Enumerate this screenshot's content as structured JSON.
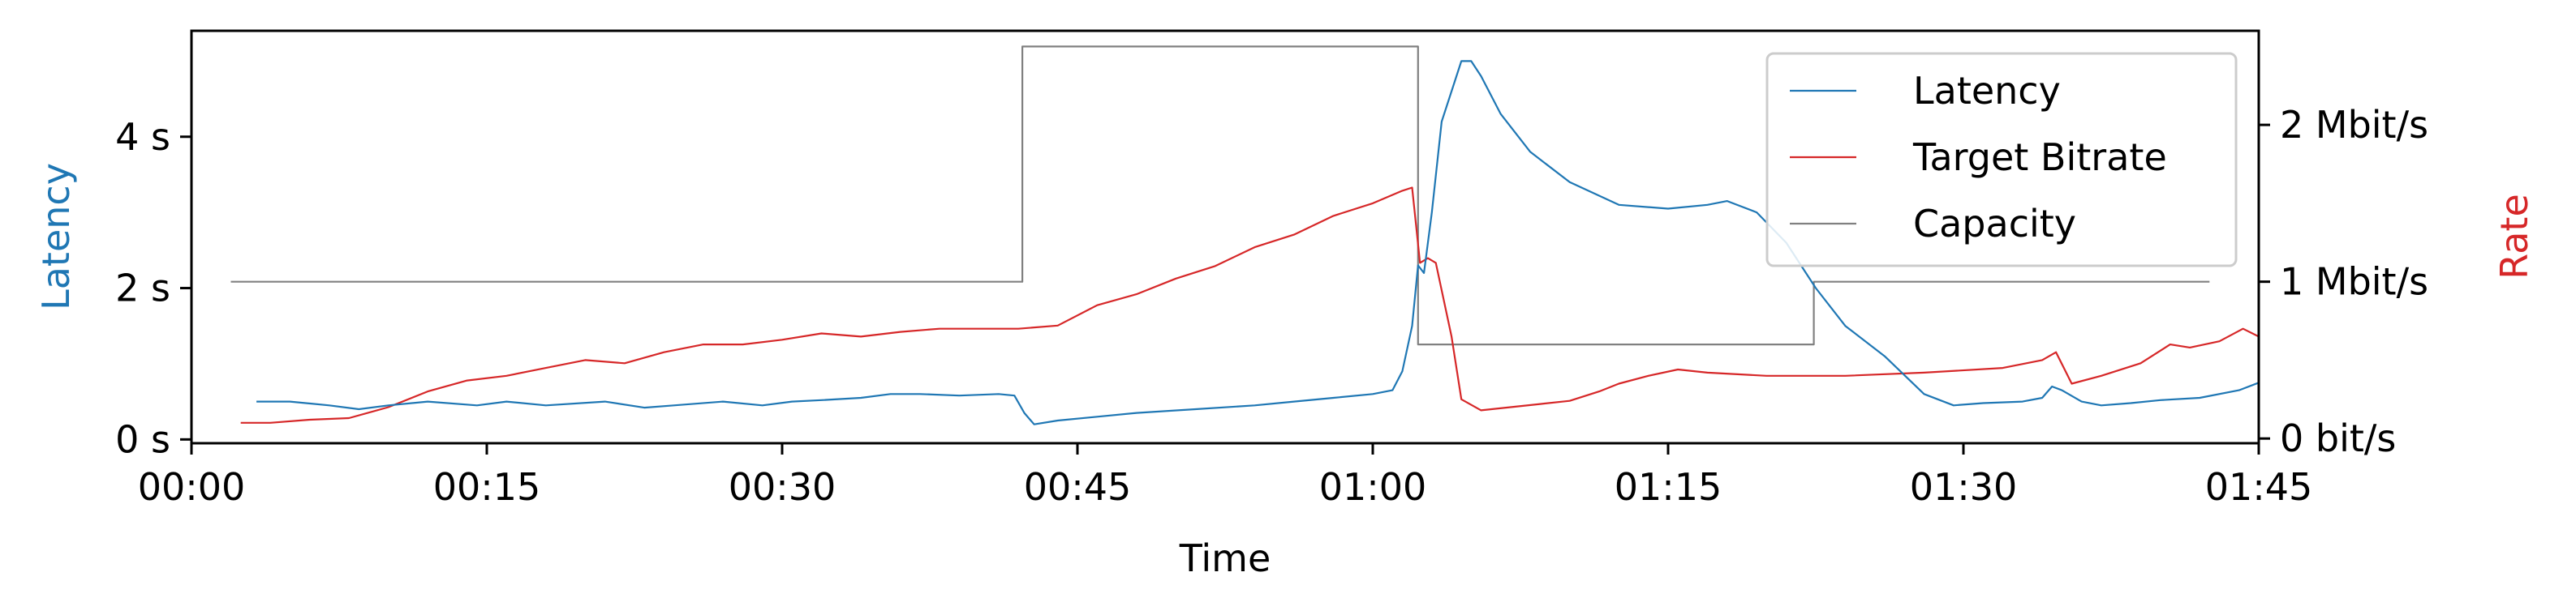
{
  "chart_data": {
    "type": "line",
    "xlabel": "Time",
    "ylabel_left": "Latency",
    "ylabel_right": "Rate",
    "x_unit": "seconds",
    "xlim": [
      0,
      105
    ],
    "ylim_left": [
      -0.05,
      5.4
    ],
    "ylim_right": [
      -0.03,
      2.6
    ],
    "x_ticks": [
      {
        "value": 0,
        "label": "00:00"
      },
      {
        "value": 15,
        "label": "00:15"
      },
      {
        "value": 30,
        "label": "00:30"
      },
      {
        "value": 45,
        "label": "00:45"
      },
      {
        "value": 60,
        "label": "01:00"
      },
      {
        "value": 75,
        "label": "01:15"
      },
      {
        "value": 90,
        "label": "01:30"
      },
      {
        "value": 105,
        "label": "01:45"
      }
    ],
    "y_ticks_left": [
      {
        "value": 0,
        "label": "0 s"
      },
      {
        "value": 2,
        "label": "2 s"
      },
      {
        "value": 4,
        "label": "4 s"
      }
    ],
    "y_ticks_right": [
      {
        "value": 0,
        "label": "0 bit/s"
      },
      {
        "value": 1,
        "label": "1 Mbit/s"
      },
      {
        "value": 2,
        "label": "2 Mbit/s"
      }
    ],
    "legend_position": "top-right",
    "grid": false,
    "series": [
      {
        "name": "Latency",
        "axis": "left",
        "color": "#1f77b4",
        "points": [
          [
            3.3,
            0.5
          ],
          [
            5,
            0.5
          ],
          [
            7,
            0.45
          ],
          [
            8.5,
            0.4
          ],
          [
            10,
            0.45
          ],
          [
            12,
            0.5
          ],
          [
            14.5,
            0.45
          ],
          [
            16,
            0.5
          ],
          [
            18,
            0.45
          ],
          [
            21,
            0.5
          ],
          [
            23,
            0.42
          ],
          [
            24.5,
            0.45
          ],
          [
            27,
            0.5
          ],
          [
            29,
            0.45
          ],
          [
            30.5,
            0.5
          ],
          [
            32,
            0.52
          ],
          [
            34,
            0.55
          ],
          [
            35.5,
            0.6
          ],
          [
            37,
            0.6
          ],
          [
            39,
            0.58
          ],
          [
            41,
            0.6
          ],
          [
            41.8,
            0.58
          ],
          [
            42.3,
            0.35
          ],
          [
            42.8,
            0.2
          ],
          [
            44,
            0.25
          ],
          [
            46,
            0.3
          ],
          [
            48,
            0.35
          ],
          [
            51,
            0.4
          ],
          [
            54,
            0.45
          ],
          [
            56,
            0.5
          ],
          [
            58,
            0.55
          ],
          [
            60,
            0.6
          ],
          [
            61,
            0.65
          ],
          [
            61.5,
            0.9
          ],
          [
            62,
            1.5
          ],
          [
            62.3,
            2.3
          ],
          [
            62.6,
            2.2
          ],
          [
            63,
            3.0
          ],
          [
            63.5,
            4.2
          ],
          [
            64.5,
            5.0
          ],
          [
            65,
            5.0
          ],
          [
            65.5,
            4.8
          ],
          [
            66.5,
            4.3
          ],
          [
            68,
            3.8
          ],
          [
            70,
            3.4
          ],
          [
            72.5,
            3.1
          ],
          [
            75,
            3.05
          ],
          [
            77,
            3.1
          ],
          [
            78,
            3.15
          ],
          [
            79.5,
            3.0
          ],
          [
            81,
            2.6
          ],
          [
            82.5,
            2.0
          ],
          [
            84,
            1.5
          ],
          [
            86,
            1.1
          ],
          [
            88,
            0.6
          ],
          [
            89.5,
            0.45
          ],
          [
            91,
            0.48
          ],
          [
            93,
            0.5
          ],
          [
            94,
            0.55
          ],
          [
            94.5,
            0.7
          ],
          [
            95,
            0.65
          ],
          [
            96,
            0.5
          ],
          [
            97,
            0.45
          ],
          [
            98.5,
            0.48
          ],
          [
            100,
            0.52
          ],
          [
            102,
            0.55
          ],
          [
            104,
            0.65
          ],
          [
            105,
            0.75
          ]
        ]
      },
      {
        "name": "Target Bitrate",
        "axis": "right",
        "color": "#d62728",
        "points": [
          [
            2.5,
            0.1
          ],
          [
            4,
            0.1
          ],
          [
            6,
            0.12
          ],
          [
            8,
            0.13
          ],
          [
            10,
            0.2
          ],
          [
            12,
            0.3
          ],
          [
            14,
            0.37
          ],
          [
            16,
            0.4
          ],
          [
            18,
            0.45
          ],
          [
            20,
            0.5
          ],
          [
            22,
            0.48
          ],
          [
            24,
            0.55
          ],
          [
            26,
            0.6
          ],
          [
            28,
            0.6
          ],
          [
            30,
            0.63
          ],
          [
            32,
            0.67
          ],
          [
            34,
            0.65
          ],
          [
            36,
            0.68
          ],
          [
            38,
            0.7
          ],
          [
            40,
            0.7
          ],
          [
            42,
            0.7
          ],
          [
            44,
            0.72
          ],
          [
            46,
            0.85
          ],
          [
            48,
            0.92
          ],
          [
            50,
            1.02
          ],
          [
            52,
            1.1
          ],
          [
            54,
            1.22
          ],
          [
            56,
            1.3
          ],
          [
            58,
            1.42
          ],
          [
            60,
            1.5
          ],
          [
            61.5,
            1.58
          ],
          [
            62,
            1.6
          ],
          [
            62.4,
            1.12
          ],
          [
            62.8,
            1.15
          ],
          [
            63.2,
            1.12
          ],
          [
            64,
            0.65
          ],
          [
            64.5,
            0.25
          ],
          [
            65.5,
            0.18
          ],
          [
            67,
            0.2
          ],
          [
            68.5,
            0.22
          ],
          [
            70,
            0.24
          ],
          [
            71.5,
            0.3
          ],
          [
            72.5,
            0.35
          ],
          [
            74,
            0.4
          ],
          [
            75.5,
            0.44
          ],
          [
            77,
            0.42
          ],
          [
            80,
            0.4
          ],
          [
            84,
            0.4
          ],
          [
            88,
            0.42
          ],
          [
            92,
            0.45
          ],
          [
            94,
            0.5
          ],
          [
            94.7,
            0.55
          ],
          [
            95.5,
            0.35
          ],
          [
            97,
            0.4
          ],
          [
            99,
            0.48
          ],
          [
            100.5,
            0.6
          ],
          [
            101.5,
            0.58
          ],
          [
            103,
            0.62
          ],
          [
            104.2,
            0.7
          ],
          [
            105,
            0.65
          ]
        ]
      },
      {
        "name": "Capacity",
        "axis": "right",
        "color": "#808080",
        "step": true,
        "points": [
          [
            2,
            1.0
          ],
          [
            42.2,
            1.0
          ],
          [
            42.2,
            2.5
          ],
          [
            62.3,
            2.5
          ],
          [
            62.3,
            0.6
          ],
          [
            82.4,
            0.6
          ],
          [
            82.4,
            1.0
          ],
          [
            102.5,
            1.0
          ]
        ]
      }
    ]
  }
}
